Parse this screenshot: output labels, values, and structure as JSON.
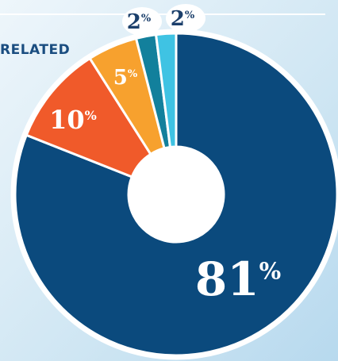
{
  "chart_data": {
    "type": "donut",
    "annotation": "RELATED",
    "categories": [
      null,
      null,
      null,
      null,
      null
    ],
    "values": [
      81,
      10,
      5,
      2,
      2
    ],
    "value_labels": [
      "81%",
      "10%",
      "5%",
      "2%",
      "2%"
    ],
    "colors": [
      "#0b4a7d",
      "#f05a2a",
      "#f7a12e",
      "#12809c",
      "#3fc3e3"
    ]
  }
}
